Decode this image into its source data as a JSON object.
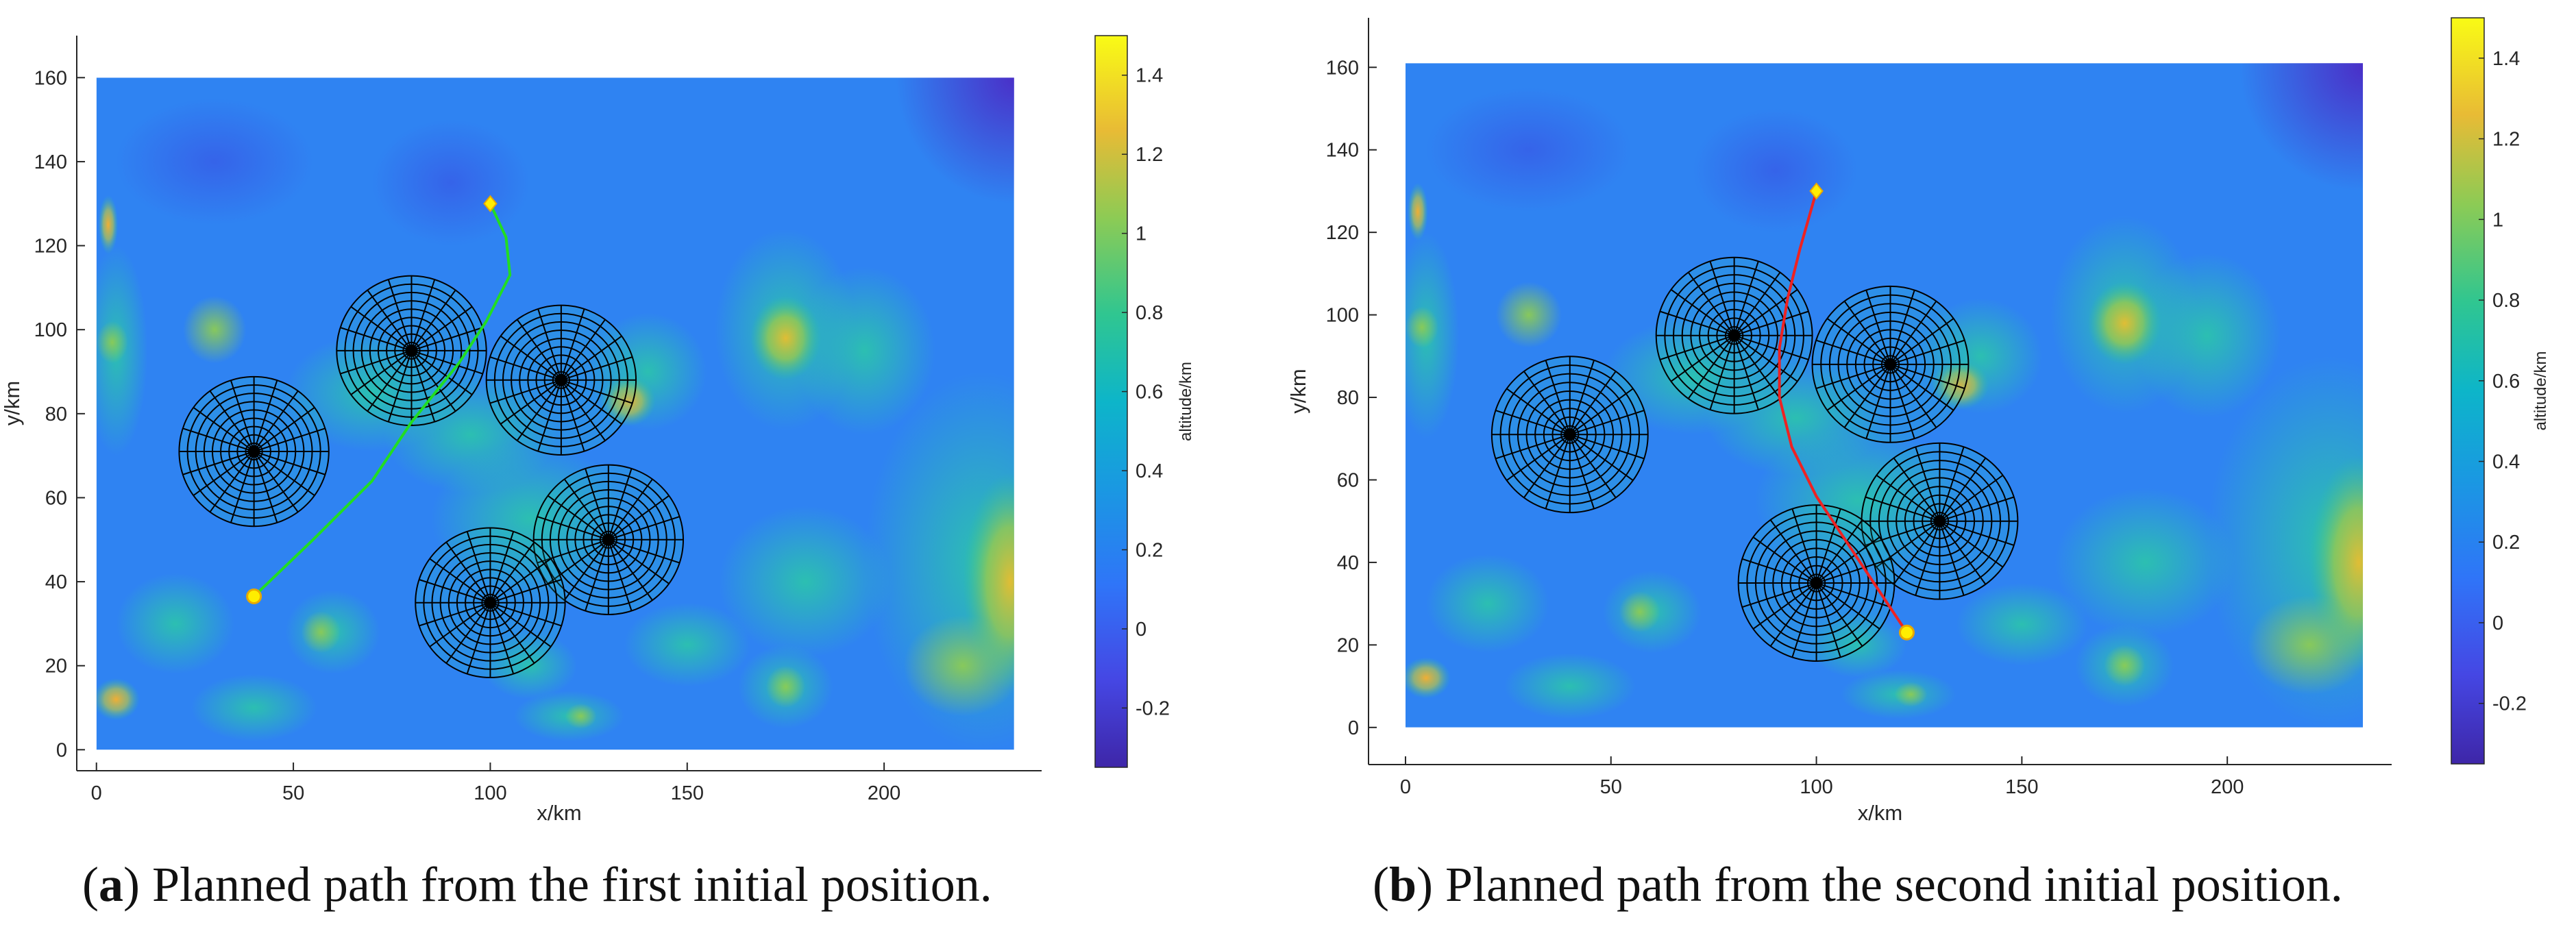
{
  "chart_data": [
    {
      "type": "heatmap",
      "title": "",
      "xlabel": "x/km",
      "ylabel": "y/km",
      "xlim": [
        -5,
        240
      ],
      "ylim": [
        -5,
        170
      ],
      "xticks": [
        "0",
        "50",
        "100",
        "150",
        "200"
      ],
      "yticks": [
        "0",
        "20",
        "40",
        "60",
        "80",
        "100",
        "120",
        "140",
        "160"
      ],
      "terrain_extent": {
        "x": [
          0,
          233
        ],
        "y": [
          0,
          160
        ]
      },
      "colorbar": {
        "label": "altitude/km",
        "range": [
          -0.35,
          1.5
        ],
        "ticks": [
          "-0.2",
          "0",
          "0.2",
          "0.4",
          "0.6",
          "0.8",
          "1",
          "1.2",
          "1.4"
        ]
      },
      "threats": [
        {
          "cx": 40,
          "cy": 71,
          "r": 19
        },
        {
          "cx": 80,
          "cy": 95,
          "r": 19
        },
        {
          "cx": 118,
          "cy": 88,
          "r": 19
        },
        {
          "cx": 130,
          "cy": 50,
          "r": 19
        },
        {
          "cx": 100,
          "cy": 35,
          "r": 19
        }
      ],
      "path": {
        "color": "#22dd22",
        "points": [
          [
            40,
            36.5
          ],
          [
            55,
            50
          ],
          [
            70,
            64
          ],
          [
            80,
            78
          ],
          [
            92,
            92
          ],
          [
            99,
            102
          ],
          [
            105,
            113
          ],
          [
            104,
            122
          ],
          [
            100,
            130
          ]
        ],
        "start": [
          40,
          36.5
        ],
        "goal": [
          100,
          130
        ]
      },
      "caption_label": "a",
      "caption_text": "Planned path from the first initial position."
    },
    {
      "type": "heatmap",
      "title": "",
      "xlabel": "x/km",
      "ylabel": "y/km",
      "xlim": [
        -9,
        240
      ],
      "ylim": [
        -9,
        172
      ],
      "xticks": [
        "0",
        "50",
        "100",
        "150",
        "200"
      ],
      "yticks": [
        "0",
        "20",
        "40",
        "60",
        "80",
        "100",
        "120",
        "140",
        "160"
      ],
      "terrain_extent": {
        "x": [
          0,
          233
        ],
        "y": [
          0,
          161
        ]
      },
      "colorbar": {
        "label": "altitude/km",
        "range": [
          -0.35,
          1.5
        ],
        "ticks": [
          "-0.2",
          "0",
          "0.2",
          "0.4",
          "0.6",
          "0.8",
          "1",
          "1.2",
          "1.4"
        ]
      },
      "threats": [
        {
          "cx": 40,
          "cy": 71,
          "r": 19
        },
        {
          "cx": 80,
          "cy": 95,
          "r": 19
        },
        {
          "cx": 118,
          "cy": 88,
          "r": 19
        },
        {
          "cx": 130,
          "cy": 50,
          "r": 19
        },
        {
          "cx": 100,
          "cy": 35,
          "r": 19
        }
      ],
      "path": {
        "color": "#ee2222",
        "points": [
          [
            122,
            23
          ],
          [
            116,
            32
          ],
          [
            108,
            44
          ],
          [
            100,
            56
          ],
          [
            94,
            68
          ],
          [
            91,
            80
          ],
          [
            91,
            92
          ],
          [
            93,
            104
          ],
          [
            96,
            116
          ],
          [
            100,
            130
          ]
        ],
        "start": [
          122,
          23
        ],
        "goal": [
          100,
          130
        ]
      },
      "caption_label": "b",
      "caption_text": "Planned path from the second initial position."
    }
  ],
  "panels": [
    {
      "caption_label": "a",
      "caption_text": "Planned path from the first initial position."
    },
    {
      "caption_label": "b",
      "caption_text": "Planned path from the second initial position."
    }
  ]
}
